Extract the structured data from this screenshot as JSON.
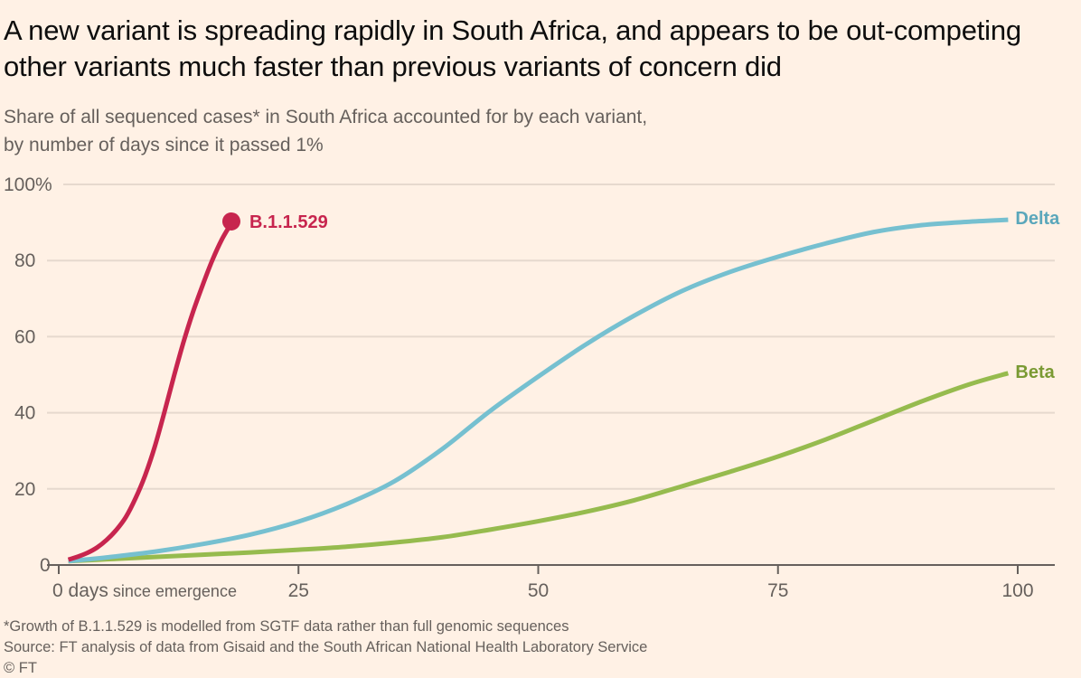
{
  "header": {
    "title": "A new variant is spreading rapidly in South Africa, and appears to be out-competing other variants much faster than previous variants of concern did",
    "subtitle_line1": "Share of all sequenced cases* in South Africa accounted for by each variant,",
    "subtitle_line2": "by number of days since it passed 1%"
  },
  "footer": {
    "note": "*Growth of B.1.1.529 is modelled from SGTF data rather than full genomic sequences",
    "source": "Source: FT analysis of data from Gisaid and the South African National Health Laboratory Service",
    "copyright": "© FT"
  },
  "chart_data": {
    "type": "line",
    "title": "A new variant is spreading rapidly in South Africa, and appears to be out-competing other variants much faster than previous variants of concern did",
    "subtitle": "Share of all sequenced cases* in South Africa accounted for by each variant, by number of days since it passed 1%",
    "xlabel": "days since emergence",
    "ylabel": "",
    "xlim": [
      0,
      100
    ],
    "ylim": [
      0,
      100
    ],
    "x_ticks": [
      0,
      25,
      50,
      75,
      100
    ],
    "x_tick_labels": [
      "0 days",
      "25",
      "50",
      "75",
      "100"
    ],
    "x_tick_suffix": "since emergence",
    "y_ticks": [
      0,
      20,
      40,
      60,
      80,
      100
    ],
    "y_tick_labels": [
      "0",
      "20",
      "40",
      "60",
      "80",
      "100%"
    ],
    "grid": true,
    "series": [
      {
        "name": "B.1.1.529",
        "color": "#c7254e",
        "end_marker": true,
        "x": [
          1,
          2,
          3,
          4,
          5,
          6,
          7,
          8,
          9,
          10,
          11,
          12,
          13,
          14,
          15,
          16,
          17,
          18
        ],
        "values": [
          1.4,
          2.2,
          3.2,
          4.6,
          6.6,
          9.2,
          12.6,
          17.5,
          23.5,
          31,
          40,
          49.5,
          58.5,
          66.5,
          73.5,
          80,
          85.5,
          89.8
        ]
      },
      {
        "name": "Delta",
        "color": "#76c0d0",
        "end_marker": false,
        "x": [
          1,
          5,
          10,
          15,
          20,
          25,
          30,
          35,
          40,
          45,
          50,
          55,
          60,
          65,
          70,
          75,
          80,
          85,
          90,
          95,
          99
        ],
        "values": [
          1,
          2,
          3.5,
          5.5,
          8,
          11.4,
          16,
          22,
          30.5,
          40.5,
          49.5,
          58,
          65.5,
          72,
          77,
          81,
          84.5,
          87.5,
          89.3,
          90.2,
          90.7
        ]
      },
      {
        "name": "Beta",
        "color": "#96bb4e",
        "end_marker": false,
        "x": [
          1,
          5,
          10,
          15,
          20,
          25,
          30,
          35,
          40,
          45,
          50,
          55,
          60,
          65,
          70,
          75,
          80,
          85,
          90,
          95,
          99
        ],
        "values": [
          1,
          1.5,
          2.1,
          2.7,
          3.3,
          4,
          4.8,
          5.9,
          7.3,
          9.3,
          11.5,
          14,
          17,
          20.7,
          24.5,
          28.5,
          33,
          38,
          43,
          47.5,
          50.4
        ]
      }
    ],
    "label_colors": {
      "B.1.1.529": "#c7254e",
      "Delta": "#5aa7bb",
      "Beta": "#7a9a33"
    }
  }
}
